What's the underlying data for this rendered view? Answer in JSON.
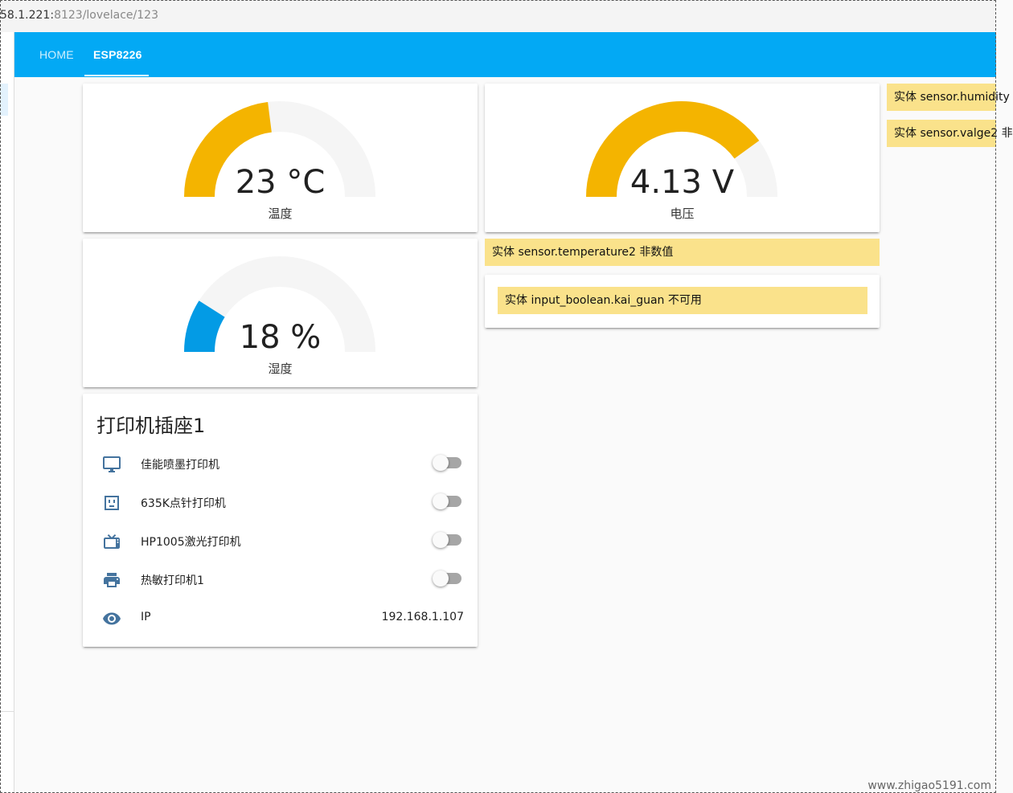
{
  "browser": {
    "url_host": "58.1.221:",
    "url_path": "8123/lovelace/123"
  },
  "header": {
    "tabs": [
      {
        "label": "HOME",
        "active": false
      },
      {
        "label": "ESP8226",
        "active": true
      }
    ],
    "color": "#03a9f4"
  },
  "gauges": {
    "temperature": {
      "value": "23 °C",
      "name": "温度",
      "level": 0.46,
      "color": "#f4b400"
    },
    "voltage": {
      "value": "4.13 V",
      "name": "电压",
      "level": 0.8,
      "color": "#f4b400"
    },
    "humidity": {
      "value": "18 %",
      "name": "湿度",
      "level": 0.18,
      "color": "#039be5"
    }
  },
  "warnings": {
    "temperature2": "实体 sensor.temperature2 非数值",
    "kai_guan": "实体 input_boolean.kai_guan 不可用",
    "humidity": "实体 sensor.humidity",
    "valge2": "实体 sensor.valge2 非"
  },
  "entities_card": {
    "title": "打印机插座1",
    "rows": [
      {
        "icon": "monitor-icon",
        "label": "佳能喷墨打印机",
        "state": "off"
      },
      {
        "icon": "power-socket-icon",
        "label": "635K点针打印机",
        "state": "off"
      },
      {
        "icon": "tv-icon",
        "label": "HP1005激光打印机",
        "state": "off"
      },
      {
        "icon": "printer-icon",
        "label": "热敏打印机1",
        "state": "off"
      },
      {
        "icon": "eye-icon",
        "label": "IP",
        "value": "192.168.1.107"
      }
    ],
    "icon_color": "#44739e"
  },
  "watermark": "www.zhigao5191.com"
}
